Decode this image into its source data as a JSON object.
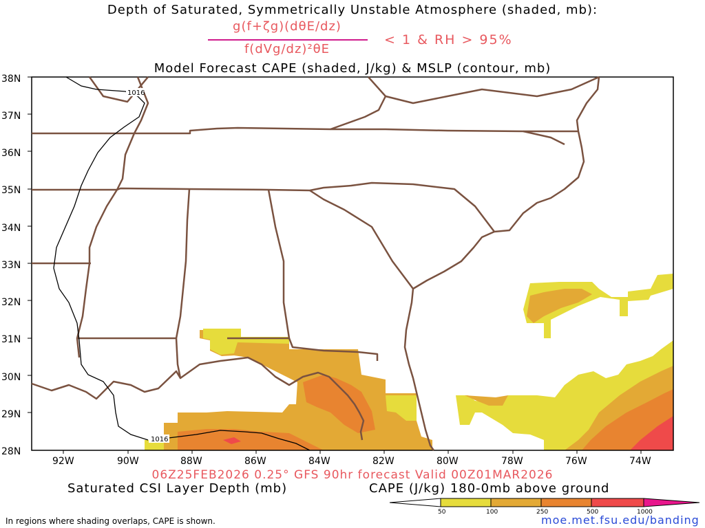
{
  "header": {
    "title_line1": "Depth of Saturated, Symmetrically Unstable Atmosphere (shaded, mb):",
    "numerator": "g(f+ζg)(dθE/dz)",
    "denominator": "f(dVg/dz)²θE",
    "condition": "< 1 & RH > 95%",
    "title_line3": "Model Forecast CAPE (shaded, J/kg) & MSLP (contour, mb)"
  },
  "map": {
    "lat_labels": [
      "38N",
      "37N",
      "36N",
      "35N",
      "34N",
      "33N",
      "32N",
      "31N",
      "30N",
      "29N",
      "28N"
    ],
    "lon_labels": [
      "92W",
      "90W",
      "88W",
      "86W",
      "84W",
      "82W",
      "80W",
      "78W",
      "76W",
      "74W"
    ],
    "isobar_labels": [
      "1016",
      "1016"
    ],
    "colors": {
      "state_lines": "#7a5240",
      "cape_50": "#e6dc3c",
      "cape_100": "#e3a935",
      "cape_250": "#e88430",
      "cape_500": "#ef4a4a",
      "cape_1000": "#e8168c"
    }
  },
  "footer": {
    "valid_line": "06Z25FEB2026 0.25° GFS 90hr forecast Valid 00Z01MAR2026",
    "left_label": "Saturated CSI Layer Depth (mb)",
    "right_label": "CAPE (J/kg) 180-0mb above ground",
    "colorbar_ticks": [
      "50",
      "100",
      "250",
      "500",
      "1000"
    ],
    "note": "In regions where shading overlaps, CAPE is shown.",
    "url": "moe.met.fsu.edu/banding"
  }
}
